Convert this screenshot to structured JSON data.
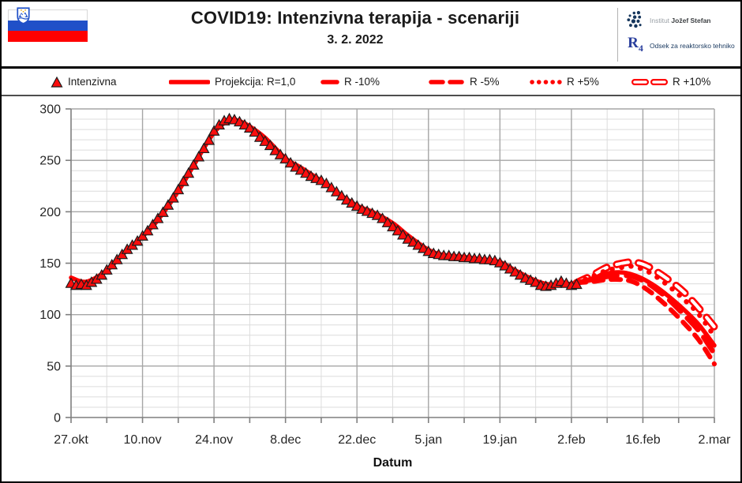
{
  "header": {
    "title": "COVID19: Intenzivna terapija - scenariji",
    "date": "3. 2. 2022",
    "flag": {
      "name": "slovenia-flag",
      "colors": {
        "white": "#ffffff",
        "blue": "#2050c8",
        "red": "#ff0000",
        "coat_blue": "#2050c8",
        "coat_star": "#e8a000"
      }
    },
    "logos": {
      "ijs": {
        "prefix": "Institut",
        "name": "Jožef Stefan",
        "dot_color": "#16365c"
      },
      "r4": {
        "symbol": "R",
        "subscript": "4",
        "label": "Odsek za reaktorsko tehniko",
        "color": "#2a3f9d"
      }
    }
  },
  "legend": {
    "items": [
      {
        "label": "Intenzivna",
        "marker": "triangle"
      },
      {
        "label": "Projekcija: R=1,0",
        "marker": "solid"
      },
      {
        "label": "R -10%",
        "marker": "dash-short"
      },
      {
        "label": "R -5%",
        "marker": "dash-long"
      },
      {
        "label": "R +5%",
        "marker": "dots"
      },
      {
        "label": "R +10%",
        "marker": "dash-hollow"
      }
    ]
  },
  "chart_data": {
    "type": "line",
    "title": "COVID19: Intenzivna terapija - scenariji",
    "xlabel": "Datum",
    "ylabel": "",
    "ylim": [
      0,
      300
    ],
    "grid": true,
    "x_axis": {
      "label": "Datum",
      "range_days": [
        0,
        126
      ],
      "tick_days": [
        0,
        14,
        28,
        42,
        56,
        70,
        84,
        98,
        112,
        126
      ],
      "tick_labels": [
        "27.okt",
        "10.nov",
        "24.nov",
        "8.dec",
        "22.dec",
        "5.jan",
        "19.jan",
        "2.feb",
        "16.feb",
        "2.mar"
      ],
      "minor_tick_days": [
        7,
        21,
        35,
        49,
        63,
        77,
        91,
        105,
        119
      ]
    },
    "y_axis": {
      "min": 0,
      "max": 300,
      "major_step": 50,
      "minor_step": 10,
      "tick_labels": [
        "0",
        "50",
        "100",
        "150",
        "200",
        "250",
        "300"
      ]
    },
    "colors": {
      "series_red": "#ff0000",
      "triangle_fill": "#fb0d0d",
      "triangle_stroke": "#1c1c1c",
      "grid_minor": "#dcdcdc",
      "grid_major": "#a6a6a6",
      "axis": "#7f7f7f",
      "label": "#262626"
    },
    "series": [
      {
        "name": "Intenzivna",
        "type": "scatter",
        "marker": "triangle",
        "start_day": 0,
        "step_days": 1,
        "values": [
          130,
          128,
          129,
          128,
          131,
          134,
          138,
          143,
          148,
          153,
          158,
          163,
          167,
          171,
          176,
          181,
          187,
          193,
          199,
          206,
          213,
          221,
          229,
          237,
          245,
          253,
          261,
          269,
          278,
          284,
          288,
          290,
          289,
          287,
          284,
          281,
          277,
          272,
          268,
          264,
          259,
          255,
          251,
          247,
          243,
          240,
          237,
          234,
          232,
          230,
          227,
          223,
          219,
          215,
          211,
          208,
          205,
          202,
          200,
          198,
          196,
          193,
          189,
          185,
          181,
          177,
          173,
          170,
          167,
          164,
          161,
          159,
          158,
          157,
          157,
          156,
          156,
          155,
          155,
          154,
          154,
          153,
          153,
          152,
          150,
          147,
          144,
          141,
          138,
          135,
          133,
          131,
          128,
          127,
          128,
          130,
          132,
          130,
          128,
          129
        ]
      },
      {
        "name": "Projekcija: R=1,0",
        "type": "line",
        "style": "solid",
        "days": [
          0,
          3,
          7,
          10,
          14,
          17,
          21,
          24,
          28,
          31,
          33,
          35,
          38,
          42,
          45,
          49,
          52,
          56,
          59,
          63,
          66,
          70,
          73,
          77,
          80,
          84,
          87,
          91,
          94,
          96,
          99,
          102,
          105,
          108,
          111,
          114,
          117,
          120,
          123,
          126
        ],
        "values": [
          136,
          132,
          143,
          158,
          176,
          192,
          220,
          245,
          277,
          289,
          288,
          283,
          272,
          252,
          243,
          230,
          219,
          206,
          200,
          189,
          177,
          163,
          158,
          156,
          154,
          151,
          143,
          133,
          129,
          129,
          131,
          135,
          140,
          141,
          137,
          129,
          118,
          105,
          90,
          70
        ]
      },
      {
        "name": "R -10%",
        "type": "line",
        "style": "dash-short",
        "days": [
          99,
          102,
          105,
          108,
          110,
          112,
          114,
          117,
          120,
          123,
          126
        ],
        "values": [
          131,
          132,
          134,
          134,
          132,
          127,
          120,
          107,
          92,
          75,
          52
        ]
      },
      {
        "name": "R -5%",
        "type": "line",
        "style": "dash-long",
        "days": [
          99,
          102,
          105,
          108,
          110,
          112,
          114,
          117,
          120,
          123,
          126
        ],
        "values": [
          131,
          134,
          137,
          138,
          137,
          133,
          127,
          115,
          100,
          84,
          62
        ]
      },
      {
        "name": "R +5%",
        "type": "line",
        "style": "dots",
        "days": [
          99,
          102,
          105,
          108,
          110,
          112,
          114,
          117,
          120,
          123,
          126
        ],
        "values": [
          131,
          137,
          143,
          146,
          147,
          144,
          139,
          128,
          115,
          100,
          79
        ]
      },
      {
        "name": "R +10%",
        "type": "line",
        "style": "dash-hollow",
        "days": [
          99,
          102,
          105,
          108,
          110,
          112,
          114,
          117,
          120,
          123,
          126
        ],
        "values": [
          131,
          138,
          146,
          150,
          151,
          149,
          144,
          134,
          122,
          106,
          88
        ]
      }
    ]
  }
}
